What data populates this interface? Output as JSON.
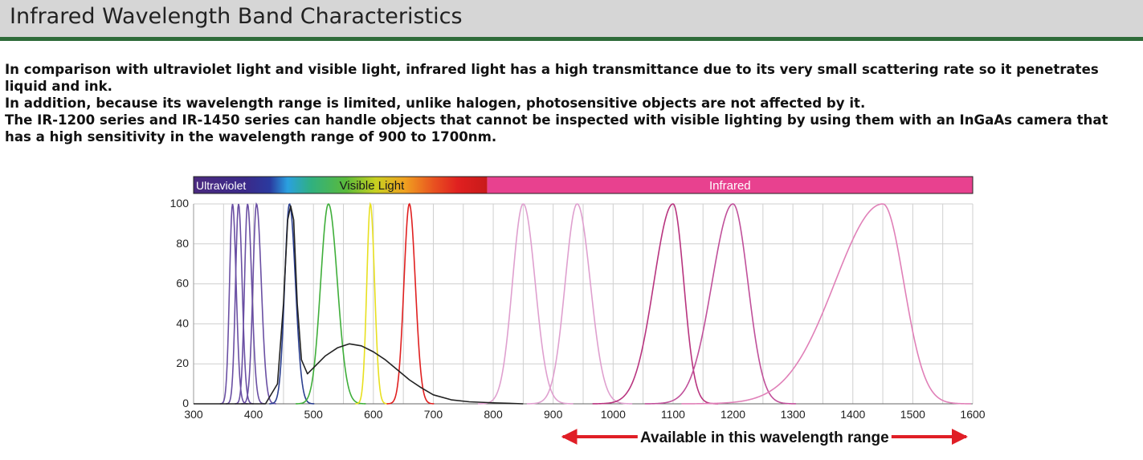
{
  "header": {
    "title": "Infrared Wavelength Band Characteristics"
  },
  "intro": {
    "paragraphs": [
      "In comparison with ultraviolet light and visible light, infrared light has a high transmittance due to its very small scattering rate so it penetrates liquid and ink.",
      "In addition, because its wavelength range is limited, unlike halogen, photosensitive objects are not affected by it.",
      "The IR-1200 series and IR-1450 series can handle objects that cannot be inspected with visible lighting by using them with an InGaAs camera that has a high sensitivity in the wavelength range of 900 to 1700nm."
    ]
  },
  "spectrum_bar": {
    "bands": [
      {
        "label": "Ultraviolet",
        "from": 300,
        "to": 405,
        "color": "#4b2a7f"
      },
      {
        "label": "Visible Light",
        "from": 405,
        "to": 790,
        "color": "#7fbf3f"
      },
      {
        "label": "Infrared",
        "from": 790,
        "to": 1600,
        "color": "#e8418f"
      }
    ]
  },
  "annotation": {
    "text": "Available in this wavelength range",
    "from": 900,
    "to": 1600,
    "color": "#e01e26"
  },
  "chart_data": {
    "type": "line",
    "xlim": [
      300,
      1600
    ],
    "ylim": [
      0,
      100
    ],
    "x_ticks": [
      300,
      400,
      500,
      600,
      700,
      800,
      900,
      1000,
      1100,
      1200,
      1300,
      1400,
      1500,
      1600
    ],
    "y_ticks": [
      0,
      20,
      40,
      60,
      80,
      100
    ],
    "x_minor_step": 50,
    "grid": true,
    "series": [
      {
        "peak": 365,
        "left_width": 5,
        "right_width": 6,
        "color": "#6a4fa3"
      },
      {
        "peak": 375,
        "left_width": 5,
        "right_width": 6,
        "color": "#6a4fa3"
      },
      {
        "peak": 390,
        "left_width": 5,
        "right_width": 7,
        "color": "#6a4fa3"
      },
      {
        "peak": 405,
        "left_width": 6,
        "right_width": 8,
        "color": "#6a4fa3"
      },
      {
        "peak": 460,
        "left_width": 8,
        "right_width": 10,
        "color": "#2b3f8f"
      },
      {
        "peak": 525,
        "left_width": 13,
        "right_width": 15,
        "color": "#3fae3a"
      },
      {
        "peak": 595,
        "left_width": 6,
        "right_width": 7,
        "color": "#e8e020"
      },
      {
        "peak": 660,
        "left_width": 9,
        "right_width": 10,
        "color": "#e02020"
      },
      {
        "peak": 850,
        "left_width": 18,
        "right_width": 20,
        "color": "#dfa0cf"
      },
      {
        "peak": 940,
        "left_width": 20,
        "right_width": 22,
        "color": "#dfa0cf"
      },
      {
        "peak": 1100,
        "left_width": 32,
        "right_width": 18,
        "color": "#b8347f"
      },
      {
        "peak": 1200,
        "left_width": 35,
        "right_width": 25,
        "color": "#c0509a"
      },
      {
        "peak": 1450,
        "left_width": 80,
        "right_width": 35,
        "color": "#e080b8"
      }
    ],
    "white_led": {
      "color": "#222222",
      "points": [
        [
          300,
          0
        ],
        [
          420,
          0
        ],
        [
          440,
          10
        ],
        [
          450,
          50
        ],
        [
          457,
          92
        ],
        [
          462,
          99
        ],
        [
          467,
          92
        ],
        [
          473,
          50
        ],
        [
          480,
          22
        ],
        [
          490,
          15
        ],
        [
          500,
          18
        ],
        [
          520,
          24
        ],
        [
          540,
          28
        ],
        [
          560,
          30
        ],
        [
          580,
          29
        ],
        [
          600,
          26
        ],
        [
          620,
          22
        ],
        [
          640,
          17
        ],
        [
          660,
          12
        ],
        [
          680,
          8
        ],
        [
          700,
          4.5
        ],
        [
          730,
          2
        ],
        [
          760,
          1
        ],
        [
          800,
          0.5
        ],
        [
          850,
          0
        ]
      ]
    }
  }
}
